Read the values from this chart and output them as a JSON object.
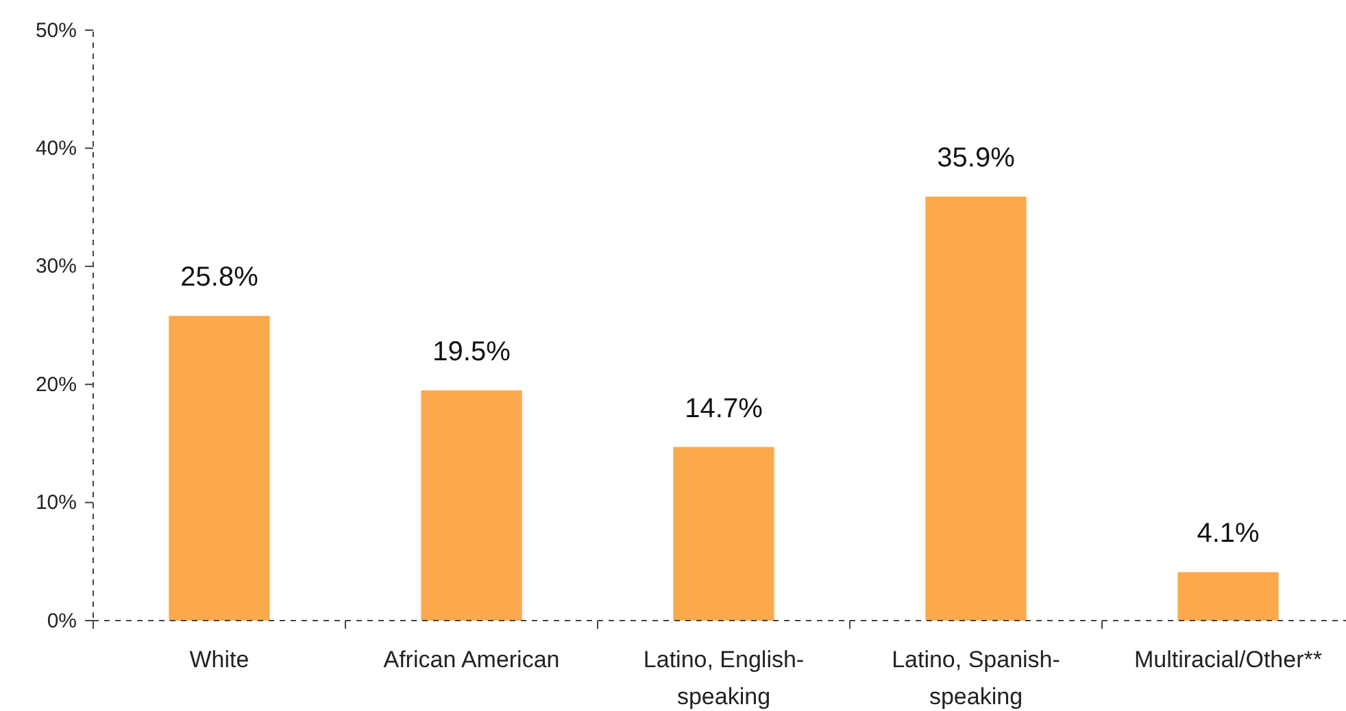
{
  "chart_data": {
    "type": "bar",
    "categories": [
      "White",
      "African American",
      "Latino, English-speaking",
      "Latino, Spanish-speaking",
      "Multiracial/Other**"
    ],
    "values": [
      25.8,
      19.5,
      14.7,
      35.9,
      4.1
    ],
    "value_labels": [
      "25.8%",
      "19.5%",
      "14.7%",
      "35.9%",
      "4.1%"
    ],
    "color": "#fba94a",
    "ylim": [
      0,
      50
    ],
    "yticks": [
      {
        "value": 0,
        "label": "0%"
      },
      {
        "value": 10,
        "label": "10%"
      },
      {
        "value": 20,
        "label": "20%"
      },
      {
        "value": 30,
        "label": "30%"
      },
      {
        "value": 40,
        "label": "40%"
      },
      {
        "value": 50,
        "label": "50%"
      }
    ],
    "grid": false
  }
}
